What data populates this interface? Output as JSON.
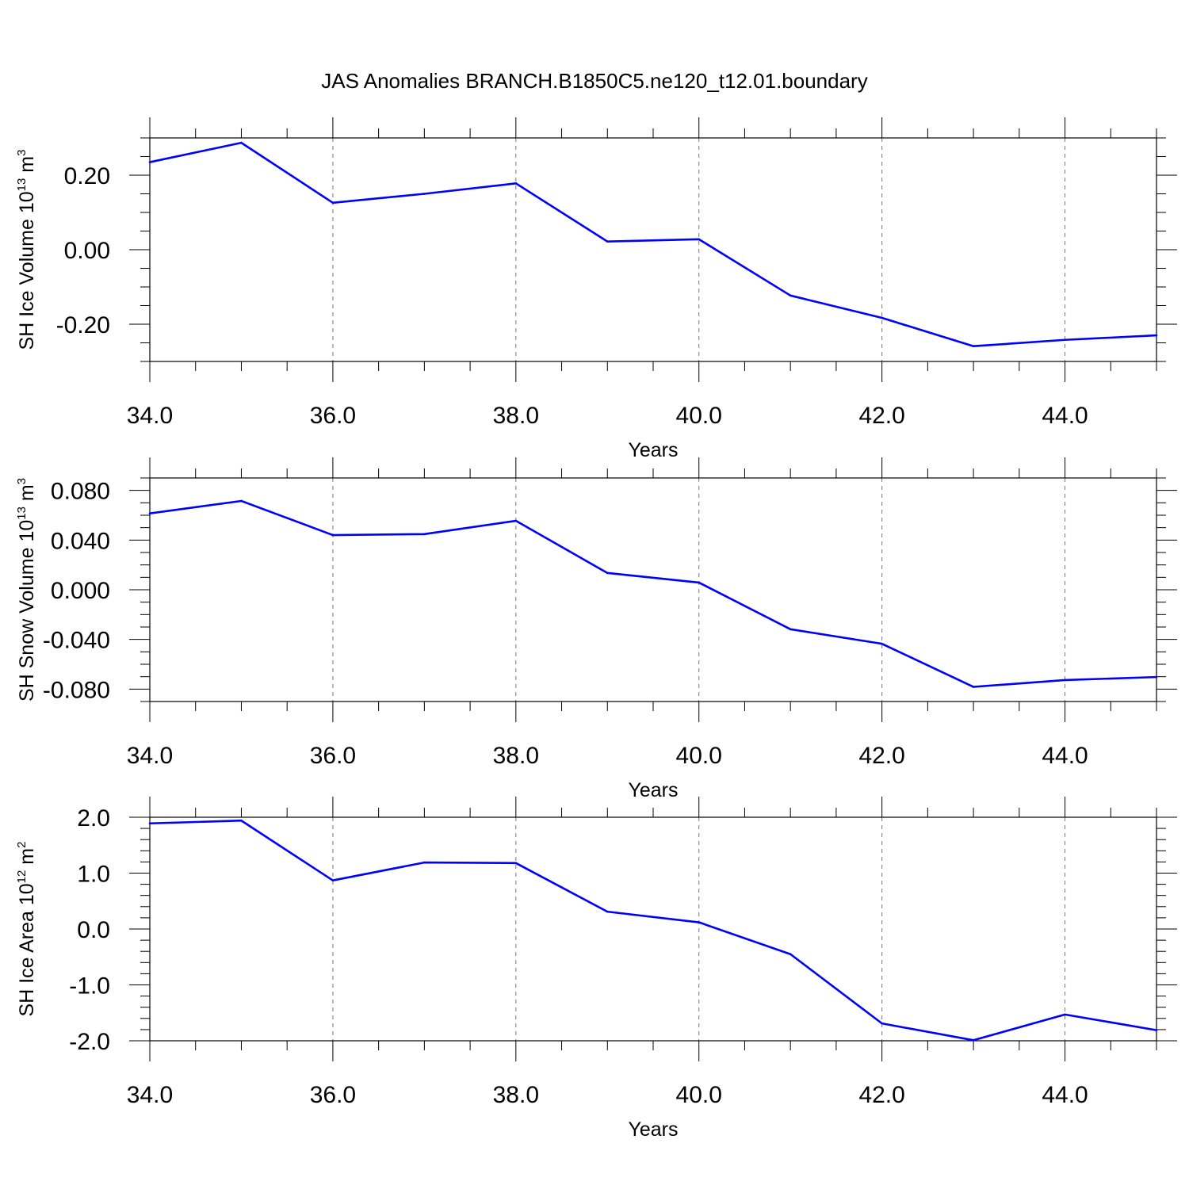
{
  "title": "JAS Anomalies BRANCH.B1850C5.ne120_t12.01.boundary",
  "chart_data": [
    {
      "type": "line",
      "title": "JAS Anomalies BRANCH.B1850C5.ne120_t12.01.boundary",
      "xlabel": "Years",
      "ylabel": {
        "main": "SH Ice Volume 10",
        "exp": "13",
        "unit": " m",
        "unit_exp": "3"
      },
      "xlim": [
        34,
        45
      ],
      "ylim": [
        -0.3,
        0.3
      ],
      "xticks": [
        34,
        36,
        38,
        40,
        42,
        44
      ],
      "xtick_labels": [
        "34.0",
        "36.0",
        "38.0",
        "40.0",
        "42.0",
        "44.0"
      ],
      "yticks": [
        -0.2,
        0.0,
        0.2
      ],
      "ytick_labels": [
        "-0.20",
        "0.00",
        "0.20"
      ],
      "y_minor_step": 0.05,
      "x_minor_step": 0.5,
      "grid": "vertical dashed at major x ticks",
      "line_color": "#0000ff",
      "x": [
        34,
        35,
        36,
        37,
        38,
        39,
        40,
        41,
        42,
        43,
        44,
        45
      ],
      "y": [
        0.235,
        0.287,
        0.126,
        0.15,
        0.178,
        0.022,
        0.028,
        -0.123,
        -0.183,
        -0.259,
        -0.242,
        -0.23
      ]
    },
    {
      "type": "line",
      "xlabel": "Years",
      "ylabel": {
        "main": "SH Snow Volume 10",
        "exp": "13",
        "unit": " m",
        "unit_exp": "3"
      },
      "xlim": [
        34,
        45
      ],
      "ylim": [
        -0.09,
        0.09
      ],
      "xticks": [
        34,
        36,
        38,
        40,
        42,
        44
      ],
      "xtick_labels": [
        "34.0",
        "36.0",
        "38.0",
        "40.0",
        "42.0",
        "44.0"
      ],
      "yticks": [
        -0.08,
        -0.04,
        0.0,
        0.04,
        0.08
      ],
      "ytick_labels": [
        "-0.080",
        "-0.040",
        "0.000",
        "0.040",
        "0.080"
      ],
      "y_minor_step": 0.01,
      "x_minor_step": 0.5,
      "grid": "vertical dashed at major x ticks",
      "line_color": "#0000ff",
      "x": [
        34,
        35,
        36,
        37,
        38,
        39,
        40,
        41,
        42,
        43,
        44,
        45
      ],
      "y": [
        0.0615,
        0.0715,
        0.044,
        0.0448,
        0.0555,
        0.0135,
        0.0058,
        -0.0318,
        -0.0435,
        -0.0782,
        -0.0727,
        -0.0703
      ]
    },
    {
      "type": "line",
      "xlabel": "Years",
      "ylabel": {
        "main": "SH Ice Area 10",
        "exp": "12",
        "unit": " m",
        "unit_exp": "2"
      },
      "xlim": [
        34,
        45
      ],
      "ylim": [
        -2.0,
        2.0
      ],
      "xticks": [
        34,
        36,
        38,
        40,
        42,
        44
      ],
      "xtick_labels": [
        "34.0",
        "36.0",
        "38.0",
        "40.0",
        "42.0",
        "44.0"
      ],
      "yticks": [
        -2.0,
        -1.0,
        0.0,
        1.0,
        2.0
      ],
      "ytick_labels": [
        "-2.0",
        "-1.0",
        "0.0",
        "1.0",
        "2.0"
      ],
      "y_minor_step": 0.2,
      "x_minor_step": 0.5,
      "grid": "vertical dashed at major x ticks",
      "line_color": "#0000ff",
      "x": [
        34,
        35,
        36,
        37,
        38,
        39,
        40,
        41,
        42,
        43,
        44,
        45
      ],
      "y": [
        1.89,
        1.94,
        0.87,
        1.19,
        1.18,
        0.31,
        0.12,
        -0.45,
        -1.69,
        -1.99,
        -1.53,
        -1.81
      ]
    }
  ]
}
